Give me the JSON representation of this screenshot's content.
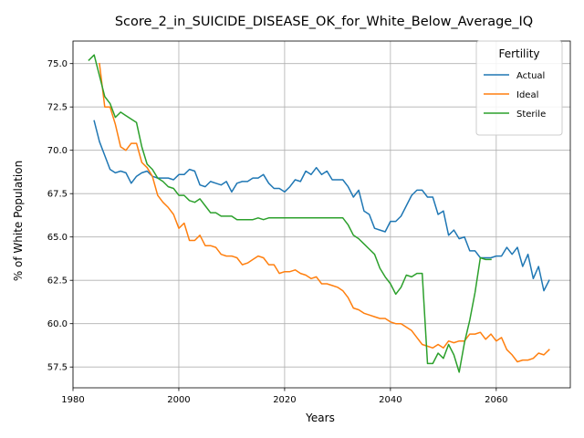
{
  "chart_data": {
    "type": "line",
    "title": "Score_2_in_SUICIDE_DISEASE_OK_for_White_Below_Average_IQ",
    "xlabel": "Years",
    "ylabel": "% of White Population",
    "xlim": [
      1980,
      2074
    ],
    "ylim": [
      56.3,
      76.3
    ],
    "x_ticks": [
      1980,
      2000,
      2020,
      2040,
      2060
    ],
    "y_ticks": [
      57.5,
      60.0,
      62.5,
      65.0,
      67.5,
      70.0,
      72.5,
      75.0
    ],
    "grid": true,
    "legend": {
      "title": "Fertility",
      "placement": "top-right"
    },
    "series": [
      {
        "name": "Actual",
        "color": "#1f77b4",
        "points": [
          [
            1984,
            71.7
          ],
          [
            1985,
            70.5
          ],
          [
            1986,
            69.7
          ],
          [
            1987,
            68.9
          ],
          [
            1988,
            68.7
          ],
          [
            1989,
            68.8
          ],
          [
            1990,
            68.7
          ],
          [
            1991,
            68.1
          ],
          [
            1992,
            68.5
          ],
          [
            1993,
            68.7
          ],
          [
            1994,
            68.8
          ],
          [
            1995,
            68.5
          ],
          [
            1996,
            68.4
          ],
          [
            1997,
            68.4
          ],
          [
            1998,
            68.4
          ],
          [
            1999,
            68.3
          ],
          [
            2000,
            68.6
          ],
          [
            2001,
            68.6
          ],
          [
            2002,
            68.9
          ],
          [
            2003,
            68.8
          ],
          [
            2004,
            68.0
          ],
          [
            2005,
            67.9
          ],
          [
            2006,
            68.2
          ],
          [
            2007,
            68.1
          ],
          [
            2008,
            68.0
          ],
          [
            2009,
            68.2
          ],
          [
            2010,
            67.6
          ],
          [
            2011,
            68.1
          ],
          [
            2012,
            68.2
          ],
          [
            2013,
            68.2
          ],
          [
            2014,
            68.4
          ],
          [
            2015,
            68.4
          ],
          [
            2016,
            68.6
          ],
          [
            2017,
            68.1
          ],
          [
            2018,
            67.8
          ],
          [
            2019,
            67.8
          ],
          [
            2020,
            67.6
          ],
          [
            2021,
            67.9
          ],
          [
            2022,
            68.3
          ],
          [
            2023,
            68.2
          ],
          [
            2024,
            68.8
          ],
          [
            2025,
            68.6
          ],
          [
            2026,
            69.0
          ],
          [
            2027,
            68.6
          ],
          [
            2028,
            68.8
          ],
          [
            2029,
            68.3
          ],
          [
            2030,
            68.3
          ],
          [
            2031,
            68.3
          ],
          [
            2032,
            67.9
          ],
          [
            2033,
            67.3
          ],
          [
            2034,
            67.7
          ],
          [
            2035,
            66.5
          ],
          [
            2036,
            66.3
          ],
          [
            2037,
            65.5
          ],
          [
            2038,
            65.4
          ],
          [
            2039,
            65.3
          ],
          [
            2040,
            65.9
          ],
          [
            2041,
            65.9
          ],
          [
            2042,
            66.2
          ],
          [
            2043,
            66.8
          ],
          [
            2044,
            67.4
          ],
          [
            2045,
            67.7
          ],
          [
            2046,
            67.7
          ],
          [
            2047,
            67.3
          ],
          [
            2048,
            67.3
          ],
          [
            2049,
            66.3
          ],
          [
            2050,
            66.5
          ],
          [
            2051,
            65.1
          ],
          [
            2052,
            65.4
          ],
          [
            2053,
            64.9
          ],
          [
            2054,
            65.0
          ],
          [
            2055,
            64.2
          ],
          [
            2056,
            64.2
          ],
          [
            2057,
            63.8
          ],
          [
            2058,
            63.8
          ],
          [
            2059,
            63.8
          ],
          [
            2060,
            63.9
          ],
          [
            2061,
            63.9
          ],
          [
            2062,
            64.4
          ],
          [
            2063,
            64.0
          ],
          [
            2064,
            64.4
          ],
          [
            2065,
            63.3
          ],
          [
            2066,
            64.0
          ],
          [
            2067,
            62.6
          ],
          [
            2068,
            63.3
          ],
          [
            2069,
            61.9
          ],
          [
            2070,
            62.5
          ]
        ]
      },
      {
        "name": "Ideal",
        "color": "#ff7f0e",
        "points": [
          [
            1985,
            75.0
          ],
          [
            1986,
            72.5
          ],
          [
            1987,
            72.5
          ],
          [
            1988,
            71.5
          ],
          [
            1989,
            70.2
          ],
          [
            1990,
            70.0
          ],
          [
            1991,
            70.4
          ],
          [
            1992,
            70.4
          ],
          [
            1993,
            69.3
          ],
          [
            1994,
            69.0
          ],
          [
            1995,
            68.5
          ],
          [
            1996,
            67.4
          ],
          [
            1997,
            67.0
          ],
          [
            1998,
            66.7
          ],
          [
            1999,
            66.3
          ],
          [
            2000,
            65.5
          ],
          [
            2001,
            65.8
          ],
          [
            2002,
            64.8
          ],
          [
            2003,
            64.8
          ],
          [
            2004,
            65.1
          ],
          [
            2005,
            64.5
          ],
          [
            2006,
            64.5
          ],
          [
            2007,
            64.4
          ],
          [
            2008,
            64.0
          ],
          [
            2009,
            63.9
          ],
          [
            2010,
            63.9
          ],
          [
            2011,
            63.8
          ],
          [
            2012,
            63.4
          ],
          [
            2013,
            63.5
          ],
          [
            2014,
            63.7
          ],
          [
            2015,
            63.9
          ],
          [
            2016,
            63.8
          ],
          [
            2017,
            63.4
          ],
          [
            2018,
            63.4
          ],
          [
            2019,
            62.9
          ],
          [
            2020,
            63.0
          ],
          [
            2021,
            63.0
          ],
          [
            2022,
            63.1
          ],
          [
            2023,
            62.9
          ],
          [
            2024,
            62.8
          ],
          [
            2025,
            62.6
          ],
          [
            2026,
            62.7
          ],
          [
            2027,
            62.3
          ],
          [
            2028,
            62.3
          ],
          [
            2029,
            62.2
          ],
          [
            2030,
            62.1
          ],
          [
            2031,
            61.9
          ],
          [
            2032,
            61.5
          ],
          [
            2033,
            60.9
          ],
          [
            2034,
            60.8
          ],
          [
            2035,
            60.6
          ],
          [
            2036,
            60.5
          ],
          [
            2037,
            60.4
          ],
          [
            2038,
            60.3
          ],
          [
            2039,
            60.3
          ],
          [
            2040,
            60.1
          ],
          [
            2041,
            60.0
          ],
          [
            2042,
            60.0
          ],
          [
            2043,
            59.8
          ],
          [
            2044,
            59.6
          ],
          [
            2045,
            59.2
          ],
          [
            2046,
            58.8
          ],
          [
            2047,
            58.7
          ],
          [
            2048,
            58.6
          ],
          [
            2049,
            58.8
          ],
          [
            2050,
            58.6
          ],
          [
            2051,
            59.0
          ],
          [
            2052,
            58.9
          ],
          [
            2053,
            59.0
          ],
          [
            2054,
            59.0
          ],
          [
            2055,
            59.4
          ],
          [
            2056,
            59.4
          ],
          [
            2057,
            59.5
          ],
          [
            2058,
            59.1
          ],
          [
            2059,
            59.4
          ],
          [
            2060,
            59.0
          ],
          [
            2061,
            59.2
          ],
          [
            2062,
            58.5
          ],
          [
            2063,
            58.2
          ],
          [
            2064,
            57.8
          ],
          [
            2065,
            57.9
          ],
          [
            2066,
            57.9
          ],
          [
            2067,
            58.0
          ],
          [
            2068,
            58.3
          ],
          [
            2069,
            58.2
          ],
          [
            2070,
            58.5
          ]
        ]
      },
      {
        "name": "Sterile",
        "color": "#2ca02c",
        "points": [
          [
            1983,
            75.2
          ],
          [
            1984,
            75.5
          ],
          [
            1985,
            74.3
          ],
          [
            1986,
            73.1
          ],
          [
            1987,
            72.7
          ],
          [
            1988,
            71.9
          ],
          [
            1989,
            72.2
          ],
          [
            1990,
            72.0
          ],
          [
            1991,
            71.8
          ],
          [
            1992,
            71.6
          ],
          [
            1993,
            70.2
          ],
          [
            1994,
            69.2
          ],
          [
            1995,
            68.9
          ],
          [
            1996,
            68.4
          ],
          [
            1997,
            68.2
          ],
          [
            1998,
            67.9
          ],
          [
            1999,
            67.8
          ],
          [
            2000,
            67.4
          ],
          [
            2001,
            67.4
          ],
          [
            2002,
            67.1
          ],
          [
            2003,
            67.0
          ],
          [
            2004,
            67.2
          ],
          [
            2005,
            66.8
          ],
          [
            2006,
            66.4
          ],
          [
            2007,
            66.4
          ],
          [
            2008,
            66.2
          ],
          [
            2009,
            66.2
          ],
          [
            2010,
            66.2
          ],
          [
            2011,
            66.0
          ],
          [
            2012,
            66.0
          ],
          [
            2013,
            66.0
          ],
          [
            2014,
            66.0
          ],
          [
            2015,
            66.1
          ],
          [
            2016,
            66.0
          ],
          [
            2017,
            66.1
          ],
          [
            2018,
            66.1
          ],
          [
            2019,
            66.1
          ],
          [
            2020,
            66.1
          ],
          [
            2021,
            66.1
          ],
          [
            2022,
            66.1
          ],
          [
            2023,
            66.1
          ],
          [
            2024,
            66.1
          ],
          [
            2025,
            66.1
          ],
          [
            2026,
            66.1
          ],
          [
            2027,
            66.1
          ],
          [
            2028,
            66.1
          ],
          [
            2029,
            66.1
          ],
          [
            2030,
            66.1
          ],
          [
            2031,
            66.1
          ],
          [
            2032,
            65.7
          ],
          [
            2033,
            65.1
          ],
          [
            2034,
            64.9
          ],
          [
            2035,
            64.6
          ],
          [
            2036,
            64.3
          ],
          [
            2037,
            64.0
          ],
          [
            2038,
            63.2
          ],
          [
            2039,
            62.7
          ],
          [
            2040,
            62.3
          ],
          [
            2041,
            61.7
          ],
          [
            2042,
            62.1
          ],
          [
            2043,
            62.8
          ],
          [
            2044,
            62.7
          ],
          [
            2045,
            62.9
          ],
          [
            2046,
            62.9
          ],
          [
            2047,
            57.7
          ],
          [
            2048,
            57.7
          ],
          [
            2049,
            58.3
          ],
          [
            2050,
            58.0
          ],
          [
            2051,
            58.8
          ],
          [
            2052,
            58.2
          ],
          [
            2053,
            57.2
          ],
          [
            2054,
            58.9
          ],
          [
            2055,
            60.2
          ],
          [
            2056,
            61.8
          ],
          [
            2057,
            63.8
          ],
          [
            2058,
            63.7
          ],
          [
            2059,
            63.7
          ]
        ]
      }
    ]
  }
}
